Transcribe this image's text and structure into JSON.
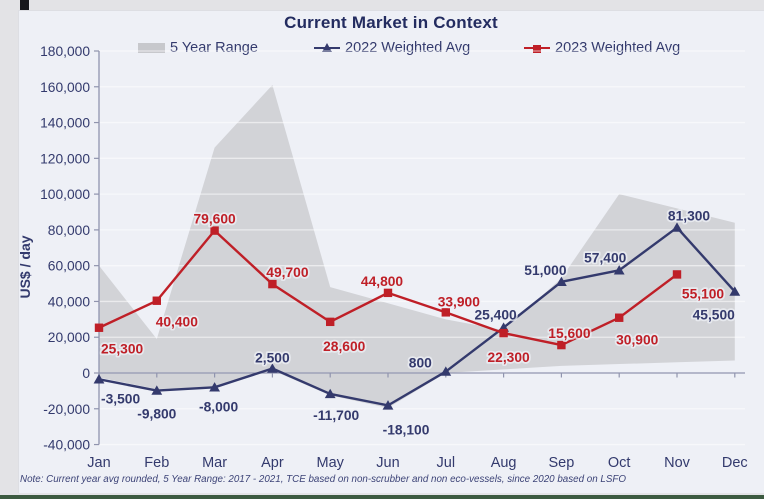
{
  "page": {
    "title": "Current Market in Context",
    "footer_note": "Note: Current year avg rounded, 5 Year Range: 2017 - 2021, TCE based on non-scrubber and non eco-vessels, since 2020 based on LSFO"
  },
  "legend": {
    "items": [
      {
        "label": "5 Year Range",
        "swatch": "area",
        "color": "#c7c8cc"
      },
      {
        "label": "2022 Weighted Avg",
        "swatch": "line-triangle",
        "color": "#343a6d"
      },
      {
        "label": "2023 Weighted Avg",
        "swatch": "line-square",
        "color": "#bf1f27"
      }
    ]
  },
  "chart_data": {
    "type": "line",
    "title": "Current Market in Context",
    "xlabel": "",
    "ylabel": "US$ / day",
    "categories": [
      "Jan",
      "Feb",
      "Mar",
      "Apr",
      "May",
      "Jun",
      "Jul",
      "Aug",
      "Sep",
      "Oct",
      "Nov",
      "Dec"
    ],
    "y_axis": {
      "min": -40000,
      "max": 180000,
      "step": 20000,
      "tick_labels": [
        "180,000",
        "160,000",
        "140,000",
        "120,000",
        "100,000",
        "80,000",
        "60,000",
        "40,000",
        "20,000",
        "0",
        "-20,000",
        "-40,000"
      ]
    },
    "grid": true,
    "legend_position": "top",
    "range_band": {
      "name": "5 Year Range",
      "color": "#d0d1d5",
      "upper": [
        60000,
        19000,
        126000,
        161000,
        48000,
        39000,
        30000,
        24000,
        53000,
        100000,
        92000,
        84000
      ],
      "lower": [
        -2500,
        -9000,
        -8000,
        1500,
        -12500,
        -19500,
        0,
        2000,
        4000,
        5000,
        6000,
        7000
      ]
    },
    "series": [
      {
        "name": "2022 Weighted Avg",
        "color": "#343a6d",
        "marker": "triangle",
        "values": [
          -3500,
          -9800,
          -8000,
          2500,
          -11700,
          -18100,
          800,
          25400,
          51000,
          57400,
          81300,
          45500
        ],
        "labels": [
          "-3,500",
          "-9,800",
          "-8,000",
          "2,500",
          "-11,700",
          "-18,100",
          "800",
          "25,400",
          "51,000",
          "57,400",
          "81,300",
          "45,500"
        ],
        "label_pos": [
          [
            2,
            20,
            "start"
          ],
          [
            0,
            24,
            "middle"
          ],
          [
            4,
            20,
            "middle"
          ],
          [
            0,
            -10,
            "middle"
          ],
          [
            6,
            22,
            "middle"
          ],
          [
            18,
            25,
            "middle"
          ],
          [
            -14,
            -8,
            "end"
          ],
          [
            -8,
            -12,
            "middle"
          ],
          [
            -16,
            -11,
            "middle"
          ],
          [
            -14,
            -12,
            "middle"
          ],
          [
            12,
            -11,
            "middle"
          ],
          [
            0,
            24,
            "end"
          ]
        ]
      },
      {
        "name": "2023 Weighted Avg",
        "color": "#bf1f27",
        "marker": "square",
        "values": [
          25300,
          40400,
          79600,
          49700,
          28600,
          44800,
          33900,
          22300,
          15600,
          30900,
          55100,
          null
        ],
        "labels": [
          "25,300",
          "40,400",
          "79,600",
          "49,700",
          "28,600",
          "44,800",
          "33,900",
          "22,300",
          "15,600",
          "30,900",
          "55,100",
          null
        ],
        "label_pos": [
          [
            2,
            22,
            "start"
          ],
          [
            20,
            22,
            "middle"
          ],
          [
            0,
            -11,
            "middle"
          ],
          [
            15,
            -11,
            "middle"
          ],
          [
            14,
            25,
            "middle"
          ],
          [
            -6,
            -11,
            "middle"
          ],
          [
            13,
            -10,
            "middle"
          ],
          [
            5,
            25,
            "middle"
          ],
          [
            8,
            -11,
            "middle"
          ],
          [
            18,
            23,
            "middle"
          ],
          [
            26,
            20,
            "middle"
          ],
          null
        ]
      }
    ]
  }
}
